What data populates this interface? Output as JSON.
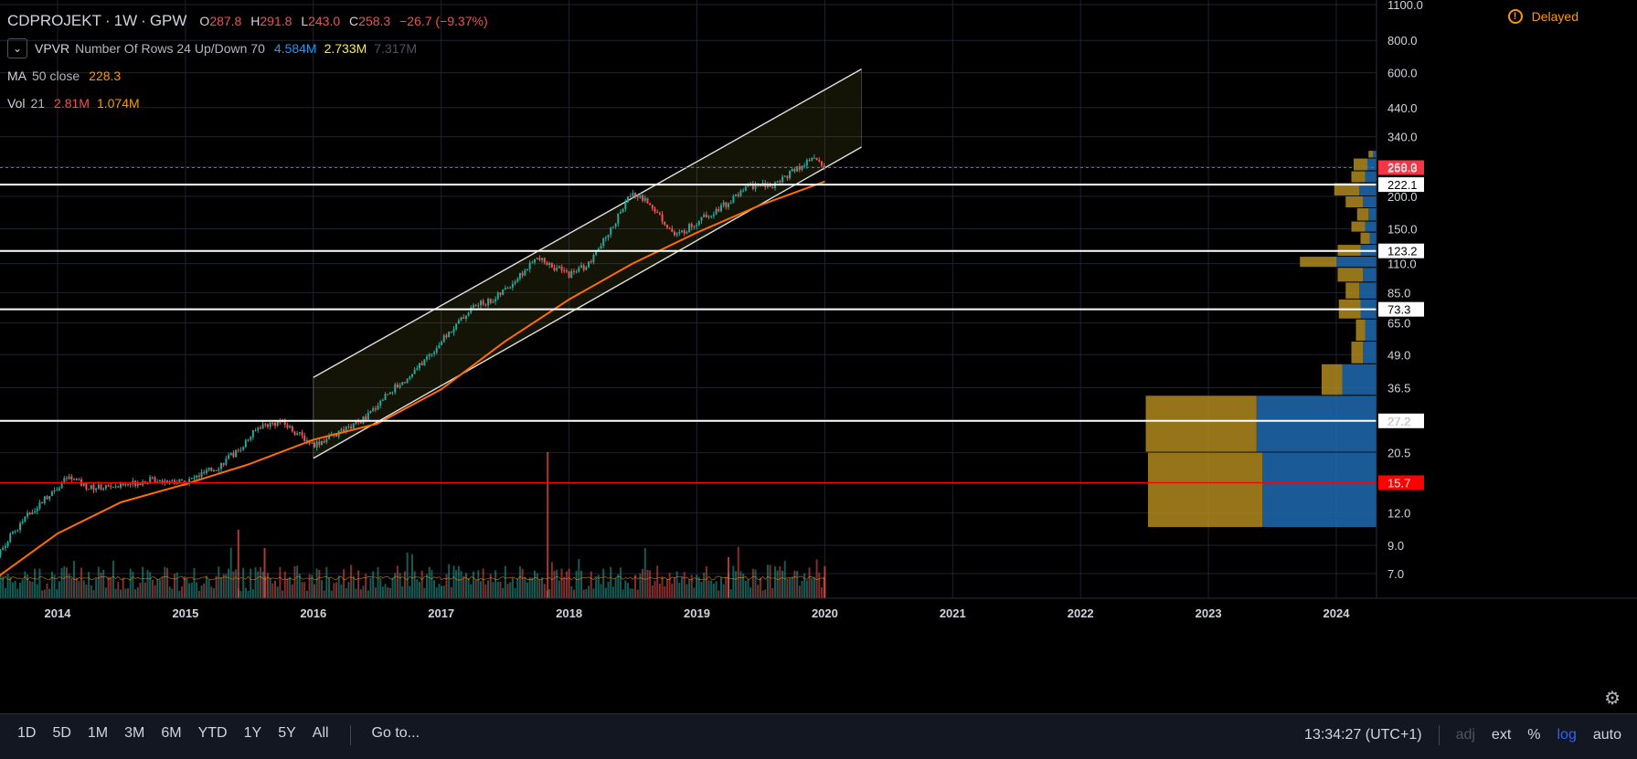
{
  "header": {
    "symbol": "CDPROJEKT",
    "interval": "1W",
    "exchange": "GPW",
    "ohlc": {
      "o": "287.8",
      "h": "291.8",
      "l": "243.0",
      "c": "258.3",
      "chg": "−26.7 (−9.37%)"
    },
    "delayed": "Delayed"
  },
  "indicators": [
    {
      "name": "VPVR",
      "params": "Number Of Rows 24 Up/Down 70",
      "values": [
        "4.584M",
        "2.733M",
        "7.317M"
      ],
      "colors": [
        "#2196f3",
        "#ffeb3b",
        "#50535e"
      ]
    },
    {
      "name": "MA",
      "params": "50 close",
      "values": [
        "228.3"
      ],
      "colors": [
        "#ff9800"
      ]
    },
    {
      "name": "Vol",
      "params": "21",
      "values": [
        "2.81M",
        "1.074M"
      ],
      "colors": [
        "#ef5350",
        "#ff9800"
      ]
    }
  ],
  "toolbar": {
    "timeframes": [
      "1D",
      "5D",
      "1M",
      "3M",
      "6M",
      "YTD",
      "1Y",
      "5Y",
      "All"
    ],
    "goto": "Go to...",
    "time": "13:34:27 (UTC+1)",
    "adj": "adj",
    "ext": "ext",
    "percent": "%",
    "log": "log",
    "auto": "auto"
  },
  "icons": {
    "settings": "gear-icon",
    "delayed": "warning-icon",
    "collapse": "chevron-down-icon"
  },
  "chart_data": {
    "type": "candlestick",
    "scale": "log",
    "x_range": [
      "2013-07-01",
      "2024-05-01"
    ],
    "y_range": [
      5.5,
      1100
    ],
    "x_ticks": [
      "2014",
      "2015",
      "2016",
      "2017",
      "2018",
      "2019",
      "2020",
      "2021",
      "2022",
      "2023",
      "2024"
    ],
    "y_ticks": [
      "1100.0",
      "800.0",
      "600.0",
      "440.0",
      "340.0",
      "260.0",
      "200.0",
      "150.0",
      "110.0",
      "85.0",
      "65.0",
      "49.0",
      "36.5",
      "27.2",
      "20.5",
      "15.7",
      "12.0",
      "9.0",
      "7.0"
    ],
    "price_path": [
      [
        "2013-07-01",
        8.0
      ],
      [
        "2013-10-01",
        11.5
      ],
      [
        "2013-12-15",
        14.5
      ],
      [
        "2014-02-01",
        16.5
      ],
      [
        "2014-04-01",
        15.0
      ],
      [
        "2014-07-01",
        15.3
      ],
      [
        "2014-10-01",
        16.2
      ],
      [
        "2015-01-01",
        15.8
      ],
      [
        "2015-04-01",
        18.0
      ],
      [
        "2015-06-01",
        21.0
      ],
      [
        "2015-08-01",
        26.0
      ],
      [
        "2015-10-01",
        27.0
      ],
      [
        "2016-01-01",
        22.0
      ],
      [
        "2016-04-01",
        25.0
      ],
      [
        "2016-06-01",
        28.0
      ],
      [
        "2016-08-01",
        35.0
      ],
      [
        "2016-10-01",
        40.0
      ],
      [
        "2017-01-01",
        55.0
      ],
      [
        "2017-04-01",
        75.0
      ],
      [
        "2017-06-01",
        80.0
      ],
      [
        "2017-08-01",
        95.0
      ],
      [
        "2017-10-01",
        115.0
      ],
      [
        "2018-01-01",
        100.0
      ],
      [
        "2018-03-01",
        110.0
      ],
      [
        "2018-05-01",
        150.0
      ],
      [
        "2018-07-01",
        210.0
      ],
      [
        "2018-09-01",
        180.0
      ],
      [
        "2018-11-01",
        140.0
      ],
      [
        "2019-01-01",
        160.0
      ],
      [
        "2019-04-01",
        190.0
      ],
      [
        "2019-06-01",
        220.0
      ],
      [
        "2019-08-01",
        220.0
      ],
      [
        "2019-10-01",
        250.0
      ],
      [
        "2019-12-01",
        280.0
      ],
      [
        "2020-01-01",
        258.3
      ]
    ],
    "ma50_path": [
      [
        "2013-07-01",
        6.6
      ],
      [
        "2014-01-01",
        10.0
      ],
      [
        "2014-07-01",
        13.2
      ],
      [
        "2015-01-01",
        15.5
      ],
      [
        "2015-07-01",
        18.5
      ],
      [
        "2016-01-01",
        23.0
      ],
      [
        "2016-07-01",
        26.5
      ],
      [
        "2017-01-01",
        36.0
      ],
      [
        "2017-07-01",
        55.0
      ],
      [
        "2018-01-01",
        80.0
      ],
      [
        "2018-07-01",
        110.0
      ],
      [
        "2019-01-01",
        145.0
      ],
      [
        "2019-07-01",
        185.0
      ],
      [
        "2020-01-01",
        228.3
      ]
    ],
    "volume_spikes": [
      [
        "2015-06-01",
        0.75
      ],
      [
        "2015-08-15",
        0.55
      ],
      [
        "2017-11-01",
        1.6
      ],
      [
        "2019-04-01",
        0.45
      ],
      [
        "2020-01-01",
        0.35
      ]
    ],
    "channel": {
      "upper": [
        [
          "2016-01-01",
          40.0
        ],
        [
          "2020-04-15",
          620.0
        ]
      ],
      "lower": [
        [
          "2016-01-01",
          19.5
        ],
        [
          "2020-04-15",
          310.0
        ]
      ]
    },
    "hlines": [
      {
        "price": 222.1,
        "label": "222.1",
        "color": "#ffffff"
      },
      {
        "price": 123.2,
        "label": "123.2",
        "color": "#ffffff"
      },
      {
        "price": 73.3,
        "label": "73.3",
        "color": "#ffffff"
      },
      {
        "price": 27.2,
        "label": "27.2",
        "color": "#ffffff"
      },
      {
        "price": 15.7,
        "label": "15.7",
        "color": "#ff0000"
      }
    ],
    "last_price": {
      "price": 258.3,
      "label": "258.3",
      "color": "#f23645"
    },
    "vpvr": [
      {
        "lo": 10.5,
        "hi": 20.5,
        "up": 1.0,
        "down": 1.0
      },
      {
        "lo": 20.5,
        "hi": 34.0,
        "up": 1.05,
        "down": 0.97
      },
      {
        "lo": 34.0,
        "hi": 45.0,
        "up": 0.3,
        "down": 0.18
      },
      {
        "lo": 45.0,
        "hi": 55.0,
        "up": 0.12,
        "down": 0.1
      },
      {
        "lo": 55.0,
        "hi": 67.0,
        "up": 0.1,
        "down": 0.08
      },
      {
        "lo": 67.0,
        "hi": 80.0,
        "up": 0.14,
        "down": 0.19
      },
      {
        "lo": 80.0,
        "hi": 93.0,
        "up": 0.15,
        "down": 0.12
      },
      {
        "lo": 93.0,
        "hi": 106.0,
        "up": 0.12,
        "down": 0.22
      },
      {
        "lo": 106.0,
        "hi": 117.0,
        "up": 0.35,
        "down": 0.32
      },
      {
        "lo": 117.0,
        "hi": 130.0,
        "up": 0.14,
        "down": 0.2
      },
      {
        "lo": 130.0,
        "hi": 145.0,
        "up": 0.06,
        "down": 0.08
      },
      {
        "lo": 145.0,
        "hi": 160.0,
        "up": 0.1,
        "down": 0.12
      },
      {
        "lo": 160.0,
        "hi": 180.0,
        "up": 0.07,
        "down": 0.1
      },
      {
        "lo": 180.0,
        "hi": 200.0,
        "up": 0.12,
        "down": 0.15
      },
      {
        "lo": 200.0,
        "hi": 225.0,
        "up": 0.15,
        "down": 0.22
      },
      {
        "lo": 225.0,
        "hi": 250.0,
        "up": 0.1,
        "down": 0.12
      },
      {
        "lo": 250.0,
        "hi": 280.0,
        "up": 0.08,
        "down": 0.12
      },
      {
        "lo": 280.0,
        "hi": 300.0,
        "up": 0.03,
        "down": 0.04
      }
    ],
    "colors": {
      "up": "#26a69a",
      "down": "#ef5350",
      "ma": "#ff6d00",
      "vp_up": "#1e6ab0",
      "vp_down": "#b08a1e"
    }
  }
}
